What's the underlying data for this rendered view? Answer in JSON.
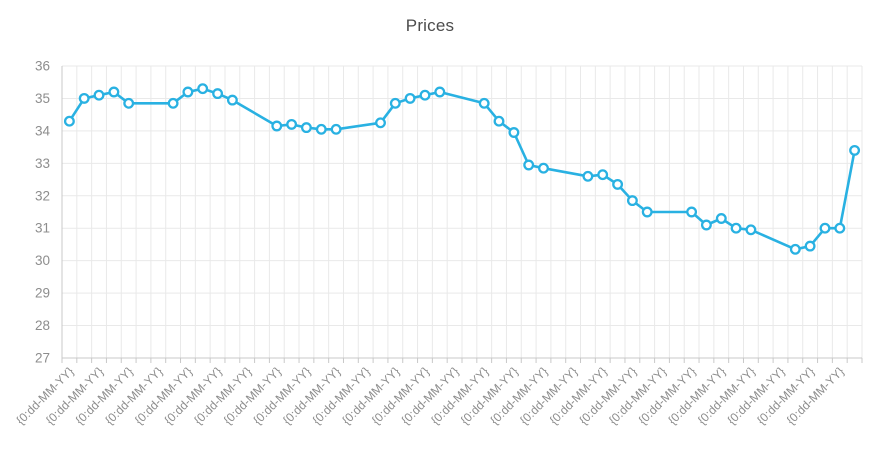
{
  "chart_data": {
    "type": "line",
    "title": "Prices",
    "series": [
      {
        "name": "Prices",
        "values": [
          34.3,
          35.0,
          35.1,
          35.2,
          34.85,
          null,
          null,
          34.85,
          35.2,
          35.3,
          35.15,
          34.95,
          null,
          null,
          34.15,
          34.2,
          34.1,
          34.05,
          34.05,
          null,
          null,
          34.25,
          34.85,
          35.0,
          35.1,
          35.2,
          null,
          null,
          34.85,
          34.3,
          33.95,
          32.95,
          32.85,
          null,
          null,
          32.6,
          32.65,
          32.35,
          31.85,
          31.5,
          null,
          null,
          31.5,
          31.1,
          31.3,
          31.0,
          30.95,
          null,
          null,
          30.35,
          30.45,
          31.0,
          31.0,
          33.4
        ]
      }
    ],
    "x_axis": {
      "num_categories": 54,
      "tick_label_text": "{0:dd-MM-YY}",
      "label_every_nth": 2,
      "visible_label_count": 27,
      "labels_rotation_deg": -45
    },
    "y_axis": {
      "min": 27,
      "max": 36,
      "tick_step": 1,
      "tick_labels": [
        "36",
        "35",
        "34",
        "33",
        "32",
        "31",
        "30",
        "29",
        "28",
        "27"
      ]
    },
    "grid": {
      "vertical": true,
      "horizontal": true
    },
    "legend": {
      "visible": false
    },
    "colors": {
      "series_line": "#29b1e2",
      "marker_fill": "#ffffff",
      "marker_stroke": "#29b1e2",
      "gridline": "#e9e9e9",
      "axis_line": "#c8c8c8",
      "tick": "#c8c8c8",
      "axis_label": "#8d8d8d",
      "title": "#4c4c4c",
      "background": "#ffffff"
    }
  }
}
